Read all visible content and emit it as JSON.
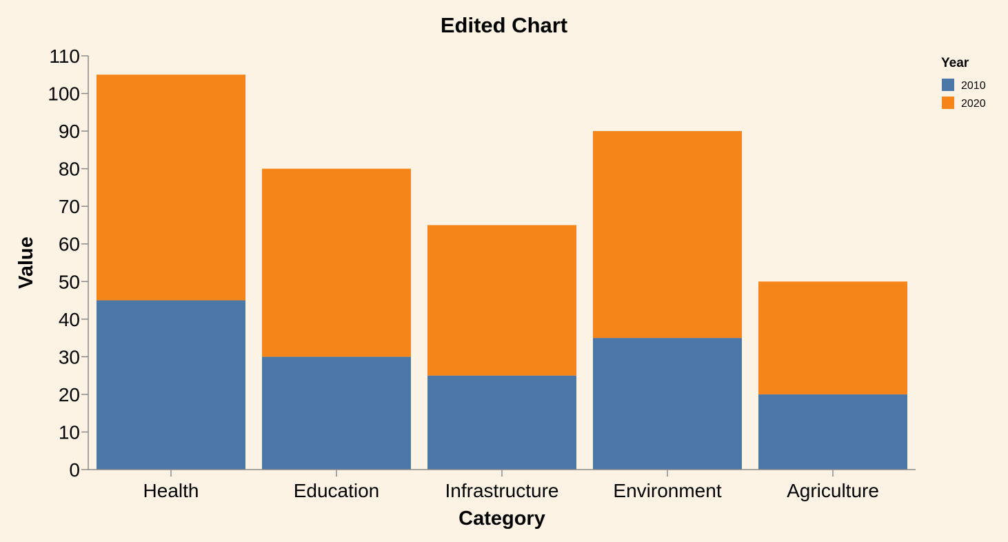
{
  "chart_data": {
    "type": "bar",
    "stacked": true,
    "title": "Edited Chart",
    "xlabel": "Category",
    "ylabel": "Value",
    "ylim": [
      0,
      110
    ],
    "yticks": [
      "0",
      "10",
      "20",
      "30",
      "40",
      "50",
      "60",
      "70",
      "80",
      "90",
      "100",
      "110"
    ],
    "categories": [
      "Health",
      "Education",
      "Infrastructure",
      "Environment",
      "Agriculture"
    ],
    "legend_title": "Year",
    "legend_position": "top-right",
    "grid": false,
    "series": [
      {
        "name": "2010",
        "color": "#4c78a8",
        "values": [
          45,
          30,
          25,
          35,
          20
        ]
      },
      {
        "name": "2020",
        "color": "#f58518",
        "values": [
          60,
          50,
          40,
          55,
          30
        ]
      }
    ]
  }
}
